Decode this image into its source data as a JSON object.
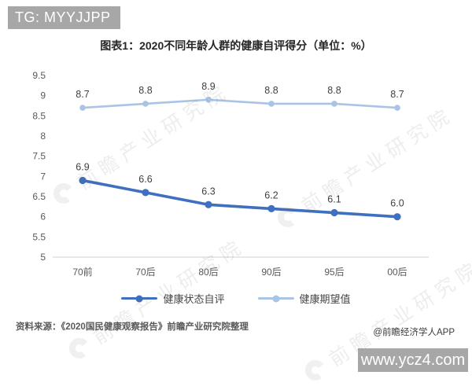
{
  "overlay": {
    "tg_badge": "TG: MYYJJPP",
    "site_badge": "www.ycz4.com"
  },
  "title": "图表1：2020不同年龄人群的健康自评得分（单位：%）",
  "chart_data": {
    "type": "line",
    "categories": [
      "70前",
      "70后",
      "80后",
      "90后",
      "95后",
      "00后"
    ],
    "series": [
      {
        "name": "健康状态自评",
        "color": "#3f6fbf",
        "values": [
          6.9,
          6.6,
          6.3,
          6.2,
          6.1,
          6.0
        ]
      },
      {
        "name": "健康期望值",
        "color": "#aac4e5",
        "values": [
          8.7,
          8.8,
          8.9,
          8.8,
          8.8,
          8.7
        ]
      }
    ],
    "title": "图表1：2020不同年龄人群的健康自评得分（单位：%）",
    "xlabel": "",
    "ylabel": "",
    "ylim": [
      5,
      9.5
    ],
    "ytick_step": 0.5,
    "grid": false,
    "legend_position": "bottom",
    "data_labels": true
  },
  "footer": {
    "source": "资料来源：《2020国民健康观察报告》前瞻产业研究院整理",
    "credit": "@前瞻经济学人APP"
  },
  "watermark": {
    "text": "前瞻产业研究院"
  },
  "colors": {
    "badge_bg": "#a7a7a7",
    "axis_line": "#d9d9d9",
    "tick_text": "#595959",
    "data_label": "#404040"
  }
}
